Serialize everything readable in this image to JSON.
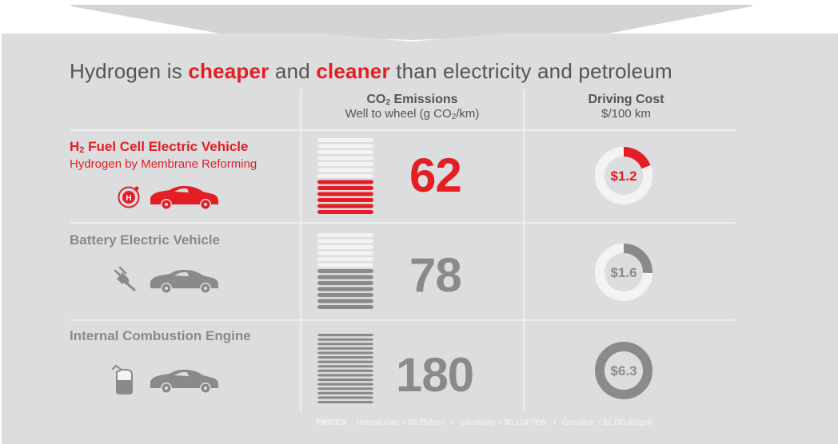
{
  "title": {
    "part1": "Hydrogen is ",
    "em1": "cheaper",
    "part2": " and ",
    "em2": "cleaner",
    "part3": " than electricity and petroleum"
  },
  "columns": {
    "co2": {
      "title_pre": "CO",
      "title_sub": "2",
      "title_post": " Emissions",
      "unit_pre": "Well to wheel (g CO",
      "unit_sub": "2",
      "unit_post": "/km)"
    },
    "cost": {
      "title": "Driving Cost",
      "unit": "$/100 km"
    }
  },
  "vehicles": [
    {
      "name_pre": "H",
      "name_sub": "2",
      "name_post": " Fuel Cell Electric Vehicle",
      "subtitle": "Hydrogen by Membrane Reforming",
      "icon": "hydrogen-icon"
    },
    {
      "name": "Battery Electric Vehicle",
      "icon": "plug-icon"
    },
    {
      "name": "Internal Combustion Engine",
      "icon": "fuel-can-icon"
    }
  ],
  "chart_data": [
    {
      "type": "bar",
      "title": "CO2 Emissions",
      "ylabel": "Well to wheel (g CO2/km)",
      "categories": [
        "H2 Fuel Cell Electric Vehicle",
        "Battery Electric Vehicle",
        "Internal Combustion Engine"
      ],
      "values": [
        62,
        78,
        180
      ],
      "value_labels": [
        "62",
        "78",
        "180"
      ],
      "ylim": [
        0,
        180
      ]
    },
    {
      "type": "pie",
      "title": "Driving Cost",
      "ylabel": "$/100 km",
      "categories": [
        "H2 Fuel Cell Electric Vehicle",
        "Battery Electric Vehicle",
        "Internal Combustion Engine"
      ],
      "values": [
        1.2,
        1.6,
        6.3
      ],
      "value_labels": [
        "$1.2",
        "$1.6",
        "$6.3"
      ],
      "max": 6.3
    }
  ],
  "prices": {
    "label": "PRICES",
    "natural_gas": "Natural Gas = $0.25/Nm³",
    "electricity": "Electricity = $0.1047/kW",
    "gasoline": "Gasoline = $1 ($3.85/gal)"
  },
  "colors": {
    "accent": "#e31e24",
    "gray": "#8a8a8a",
    "panel": "#dcddde",
    "light": "#f3f3f3"
  }
}
